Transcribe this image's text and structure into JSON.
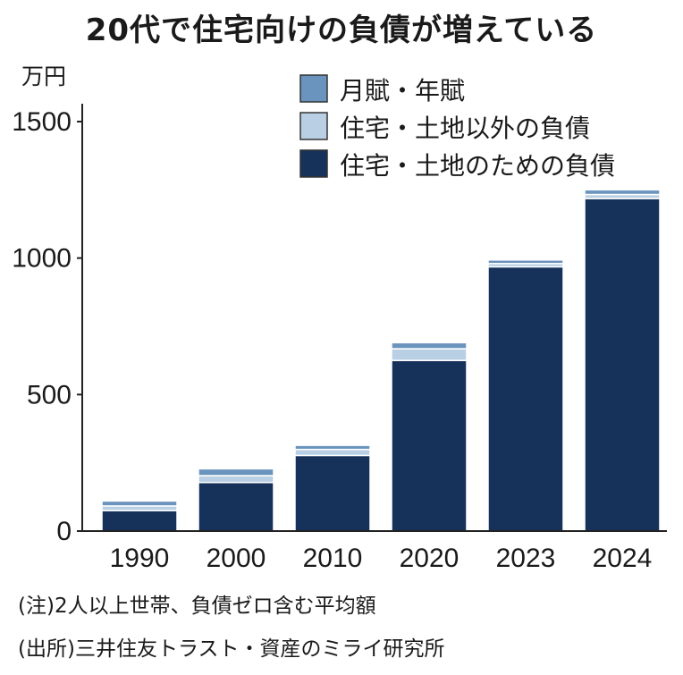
{
  "title": "20代で住宅向けの負債が増えている",
  "unit_label": "万円",
  "notes": [
    "(注)2人以上世帯、負債ゼロ含む平均額",
    "(出所)三井住友トラスト・資産のミライ研究所"
  ],
  "colors": {
    "axis": "#222222",
    "separator": "#ffffff"
  },
  "chart_data": {
    "type": "bar",
    "stacked": true,
    "categories": [
      "1990",
      "2000",
      "2010",
      "2020",
      "2023",
      "2024"
    ],
    "ylim": [
      0,
      1500
    ],
    "yticks": [
      0,
      500,
      1000,
      1500
    ],
    "series": [
      {
        "name": "住宅・土地のための負債",
        "color": "#16325a",
        "values": [
          75,
          178,
          277,
          625,
          968,
          1218
        ]
      },
      {
        "name": "住宅・土地以外の負債",
        "color": "#b9cfe4",
        "values": [
          17,
          25,
          22,
          43,
          12,
          15
        ]
      },
      {
        "name": "月賦・年賦",
        "color": "#6a93bd",
        "values": [
          18,
          25,
          15,
          22,
          13,
          17
        ]
      }
    ],
    "legend_order": [
      "月賦・年賦",
      "住宅・土地以外の負債",
      "住宅・土地のための負債"
    ],
    "legend_position": "top-center",
    "grid": false
  }
}
